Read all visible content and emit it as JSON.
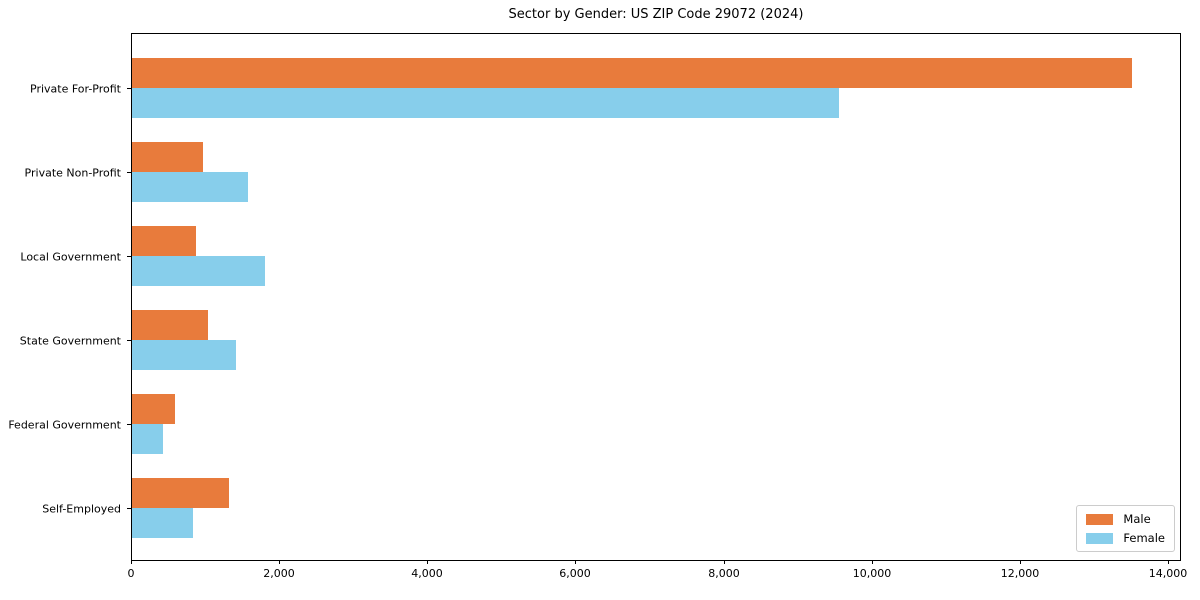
{
  "chart_data": {
    "type": "bar",
    "orientation": "horizontal",
    "title": "Sector by Gender: US ZIP Code 29072 (2024)",
    "categories": [
      "Private For-Profit",
      "Private Non-Profit",
      "Local Government",
      "State Government",
      "Federal Government",
      "Self-Employed"
    ],
    "series": [
      {
        "name": "Male",
        "color": "#e87b3c",
        "values": [
          13500,
          960,
          870,
          1030,
          580,
          1310
        ]
      },
      {
        "name": "Female",
        "color": "#87ceeb",
        "values": [
          9550,
          1560,
          1800,
          1400,
          420,
          830
        ]
      }
    ],
    "xlabel": "",
    "ylabel": "",
    "xlim": [
      0,
      14000
    ],
    "x_ticks": [
      0,
      2000,
      4000,
      6000,
      8000,
      10000,
      12000,
      14000
    ],
    "x_tick_labels": [
      "0",
      "2,000",
      "4,000",
      "6,000",
      "8,000",
      "10,000",
      "12,000",
      "14,000"
    ],
    "grid": false,
    "legend_position": "lower right",
    "background_color": "#ffffff",
    "axis_color": "#000000"
  }
}
